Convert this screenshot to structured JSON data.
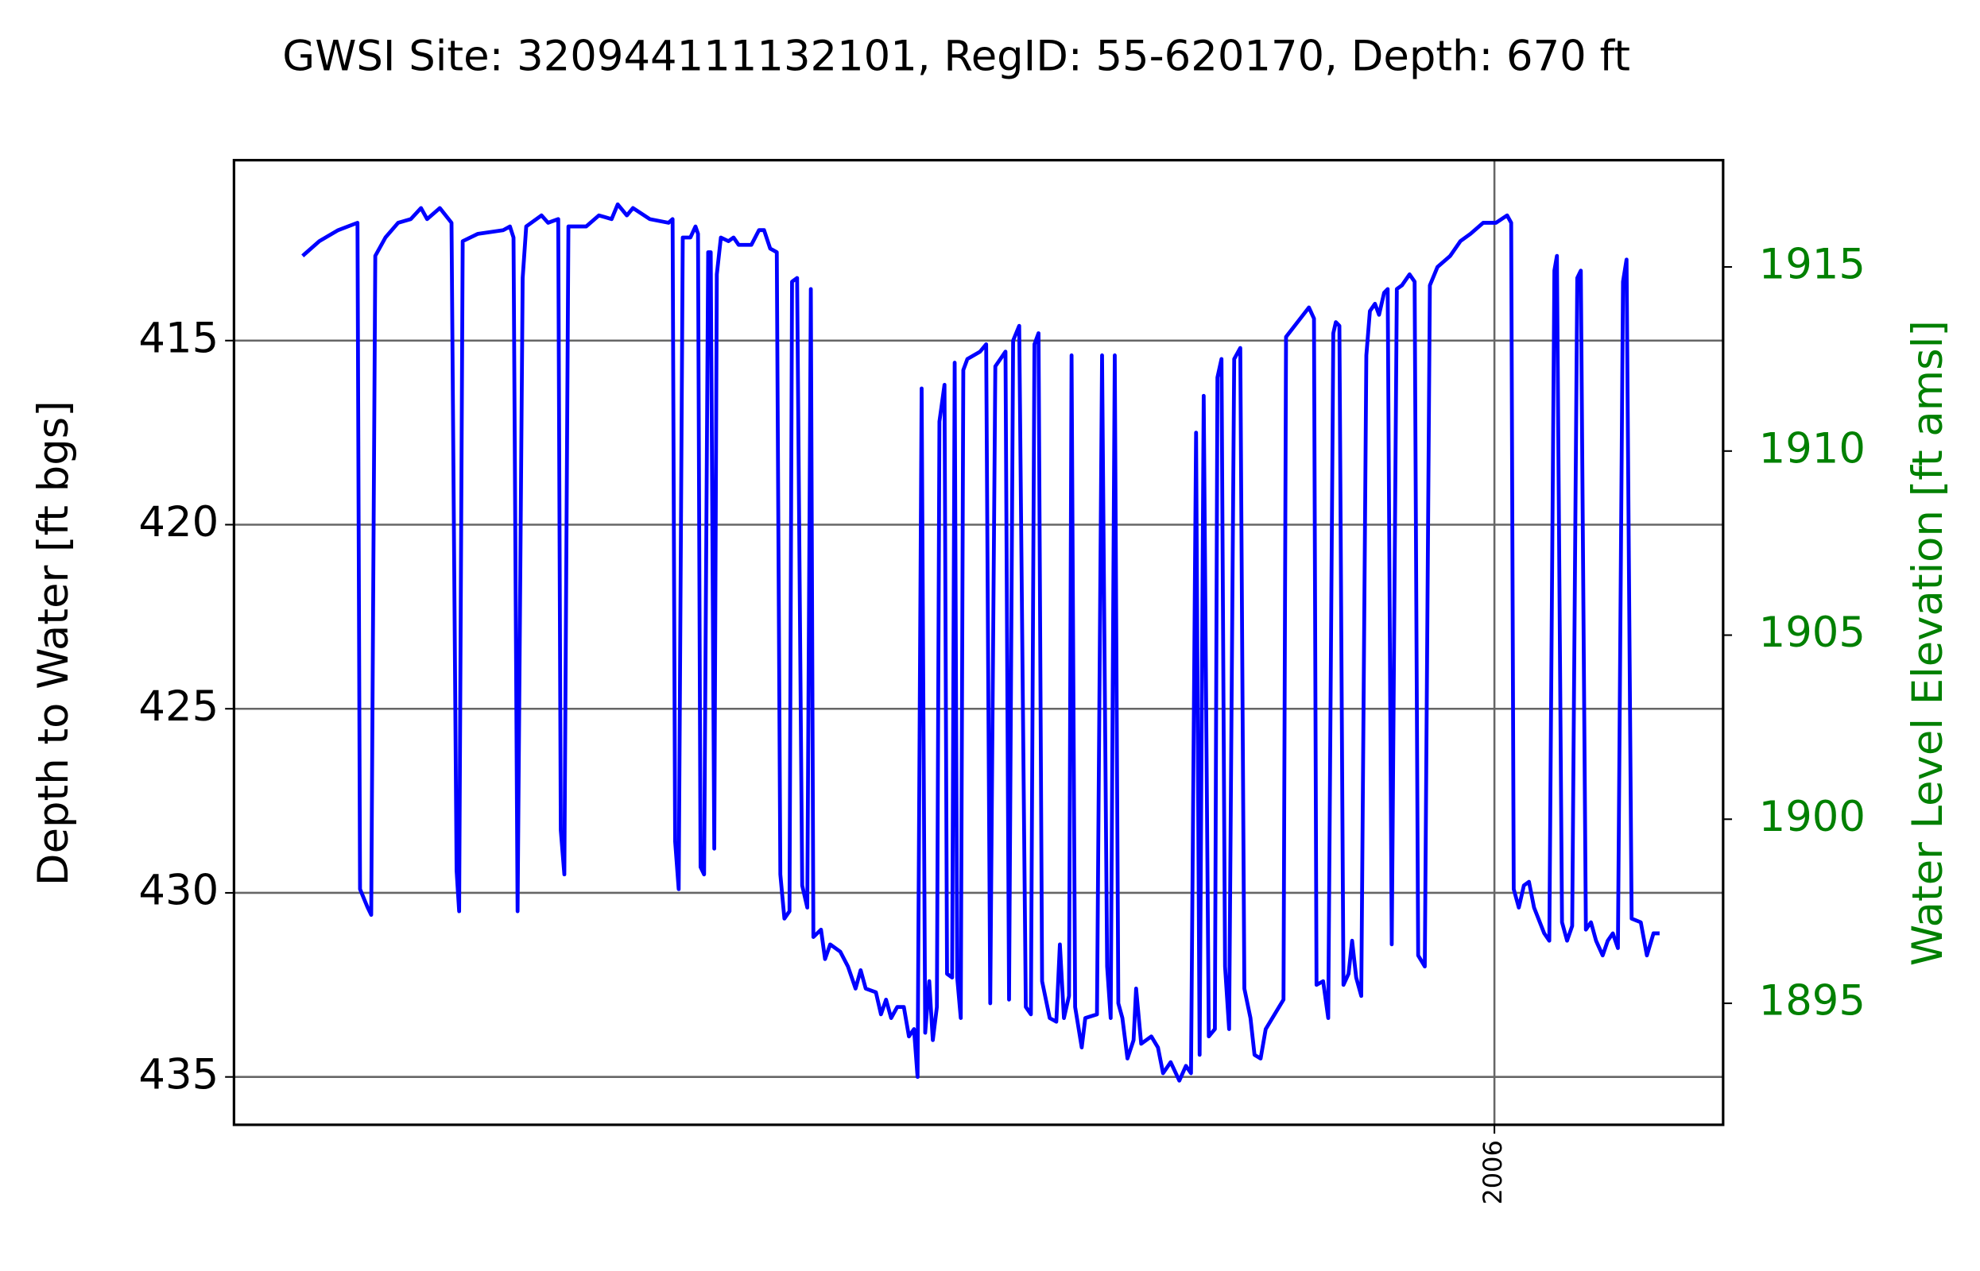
{
  "chart_data": {
    "type": "line",
    "title": "GWSI Site: 320944111132101, RegID: 55-620170, Depth: 670 ft",
    "ylabel": "Depth to Water [ft bgs]",
    "y2label": "Water Level Elevation [ft amsl]",
    "color": "#0000ff",
    "y2color": "#008000",
    "grid": true,
    "xlim": [
      2003.52,
      2006.45
    ],
    "xticks": [
      2006
    ],
    "ylim": [
      436.3,
      410.1
    ],
    "yticks": [
      415,
      420,
      425,
      430,
      435
    ],
    "y2lim": [
      1891.7,
      1917.9
    ],
    "y2ticks": [
      1895,
      1900,
      1905,
      1910,
      1915
    ],
    "x": [
      2003.655,
      2003.688,
      2003.725,
      2003.763,
      2003.768,
      2003.783,
      2003.79,
      2003.798,
      2003.818,
      2003.843,
      2003.868,
      2003.888,
      2003.9,
      2003.925,
      2003.948,
      2003.958,
      2003.963,
      2003.97,
      2004.0,
      2004.05,
      2004.063,
      2004.07,
      2004.078,
      2004.088,
      2004.095,
      2004.125,
      2004.138,
      2004.158,
      2004.163,
      2004.17,
      2004.178,
      2004.213,
      2004.238,
      2004.263,
      2004.275,
      2004.293,
      2004.305,
      2004.338,
      2004.375,
      2004.383,
      2004.388,
      2004.395,
      2004.403,
      2004.418,
      2004.428,
      2004.433,
      2004.438,
      2004.445,
      2004.453,
      2004.458,
      2004.465,
      2004.47,
      2004.478,
      2004.493,
      2004.503,
      2004.513,
      2004.538,
      2004.553,
      2004.563,
      2004.575,
      2004.588,
      2004.595,
      2004.603,
      2004.613,
      2004.618,
      2004.628,
      2004.638,
      2004.648,
      2004.655,
      2004.66,
      2004.675,
      2004.683,
      2004.693,
      2004.713,
      2004.728,
      2004.743,
      2004.753,
      2004.763,
      2004.783,
      2004.793,
      2004.803,
      2004.813,
      2004.825,
      2004.838,
      2004.848,
      2004.858,
      2004.865,
      2004.873,
      2004.88,
      2004.888,
      2004.895,
      2004.903,
      2004.908,
      2004.918,
      2004.923,
      2004.933,
      2004.938,
      2004.943,
      2004.95,
      2004.955,
      2004.963,
      2004.988,
      2005.0,
      2005.008,
      2005.018,
      2005.038,
      2005.045,
      2005.053,
      2005.065,
      2005.078,
      2005.088,
      2005.095,
      2005.103,
      2005.11,
      2005.125,
      2005.138,
      2005.145,
      2005.153,
      2005.163,
      2005.168,
      2005.175,
      2005.188,
      2005.195,
      2005.218,
      2005.228,
      2005.238,
      2005.245,
      2005.253,
      2005.26,
      2005.268,
      2005.278,
      2005.29,
      2005.295,
      2005.305,
      2005.325,
      2005.338,
      2005.348,
      2005.363,
      2005.38,
      2005.393,
      2005.403,
      2005.413,
      2005.42,
      2005.428,
      2005.438,
      2005.45,
      2005.455,
      2005.463,
      2005.47,
      2005.478,
      2005.488,
      2005.5,
      2005.508,
      2005.52,
      2005.528,
      2005.54,
      2005.55,
      2005.585,
      2005.59,
      2005.635,
      2005.645,
      2005.65,
      2005.663,
      2005.673,
      2005.683,
      2005.688,
      2005.695,
      2005.703,
      2005.713,
      2005.72,
      2005.728,
      2005.738,
      2005.748,
      2005.755,
      2005.765,
      2005.773,
      2005.783,
      2005.79,
      2005.798,
      2005.808,
      2005.818,
      2005.833,
      2005.843,
      2005.85,
      2005.863,
      2005.873,
      2005.888,
      2005.913,
      2005.933,
      2005.953,
      2005.978,
      2006.003,
      2006.025,
      2006.033,
      2006.038,
      2006.048,
      2006.058,
      2006.068,
      2006.078,
      2006.098,
      2006.108,
      2006.118,
      2006.123,
      2006.133,
      2006.143,
      2006.153,
      2006.163,
      2006.17,
      2006.18,
      2006.19,
      2006.2,
      2006.213,
      2006.223,
      2006.233,
      2006.243,
      2006.253,
      2006.26,
      2006.27,
      2006.288,
      2006.3,
      2006.313,
      2006.325
    ],
    "values": [
      412.7,
      412.3,
      412.0,
      411.8,
      429.9,
      430.4,
      430.6,
      412.7,
      412.2,
      411.8,
      411.7,
      411.4,
      411.7,
      411.4,
      411.8,
      429.4,
      430.5,
      412.3,
      412.1,
      412.0,
      411.9,
      412.2,
      430.5,
      413.3,
      411.9,
      411.6,
      411.8,
      411.7,
      428.3,
      429.5,
      411.9,
      411.9,
      411.6,
      411.7,
      411.3,
      411.6,
      411.4,
      411.7,
      411.8,
      411.7,
      428.6,
      429.9,
      412.2,
      412.2,
      411.9,
      412.1,
      429.3,
      429.5,
      412.6,
      412.6,
      428.8,
      413.2,
      412.2,
      412.3,
      412.2,
      412.4,
      412.4,
      412.0,
      412.0,
      412.5,
      412.6,
      429.5,
      430.7,
      430.5,
      413.4,
      413.3,
      429.8,
      430.4,
      413.6,
      431.2,
      431.0,
      431.8,
      431.4,
      431.6,
      432.0,
      432.6,
      432.1,
      432.6,
      432.7,
      433.3,
      432.9,
      433.4,
      433.1,
      433.1,
      433.9,
      433.7,
      435.0,
      416.3,
      433.8,
      432.4,
      434.0,
      433.1,
      417.2,
      416.2,
      432.2,
      432.3,
      415.6,
      432.3,
      433.4,
      415.8,
      415.5,
      415.3,
      415.1,
      433.0,
      415.7,
      415.3,
      432.9,
      415.0,
      414.6,
      433.1,
      433.3,
      415.1,
      414.8,
      432.4,
      433.4,
      433.5,
      431.4,
      433.4,
      432.8,
      415.4,
      433.1,
      434.2,
      433.4,
      433.3,
      415.4,
      432.0,
      433.4,
      415.4,
      433.0,
      433.4,
      434.5,
      434.0,
      432.6,
      434.1,
      433.9,
      434.2,
      434.9,
      434.6,
      435.1,
      434.7,
      434.9,
      417.5,
      434.4,
      416.5,
      433.9,
      433.7,
      416.0,
      415.5,
      432.0,
      433.7,
      415.5,
      415.2,
      432.6,
      433.4,
      434.4,
      434.5,
      433.7,
      432.9,
      414.9,
      414.1,
      414.4,
      432.5,
      432.4,
      433.4,
      414.8,
      414.5,
      414.6,
      432.5,
      432.2,
      431.3,
      432.3,
      432.8,
      415.4,
      414.2,
      414.0,
      414.3,
      413.7,
      413.6,
      431.4,
      413.6,
      413.5,
      413.2,
      413.4,
      431.7,
      432.0,
      413.5,
      413.0,
      412.7,
      412.3,
      412.1,
      411.8,
      411.8,
      411.6,
      411.8,
      429.9,
      430.4,
      429.8,
      429.7,
      430.4,
      431.1,
      431.3,
      413.1,
      412.7,
      430.8,
      431.3,
      430.9,
      413.3,
      413.1,
      431.0,
      430.8,
      431.3,
      431.7,
      431.3,
      431.1,
      431.5,
      413.4,
      412.8,
      430.7,
      430.8,
      431.7,
      431.1,
      431.1
    ]
  }
}
